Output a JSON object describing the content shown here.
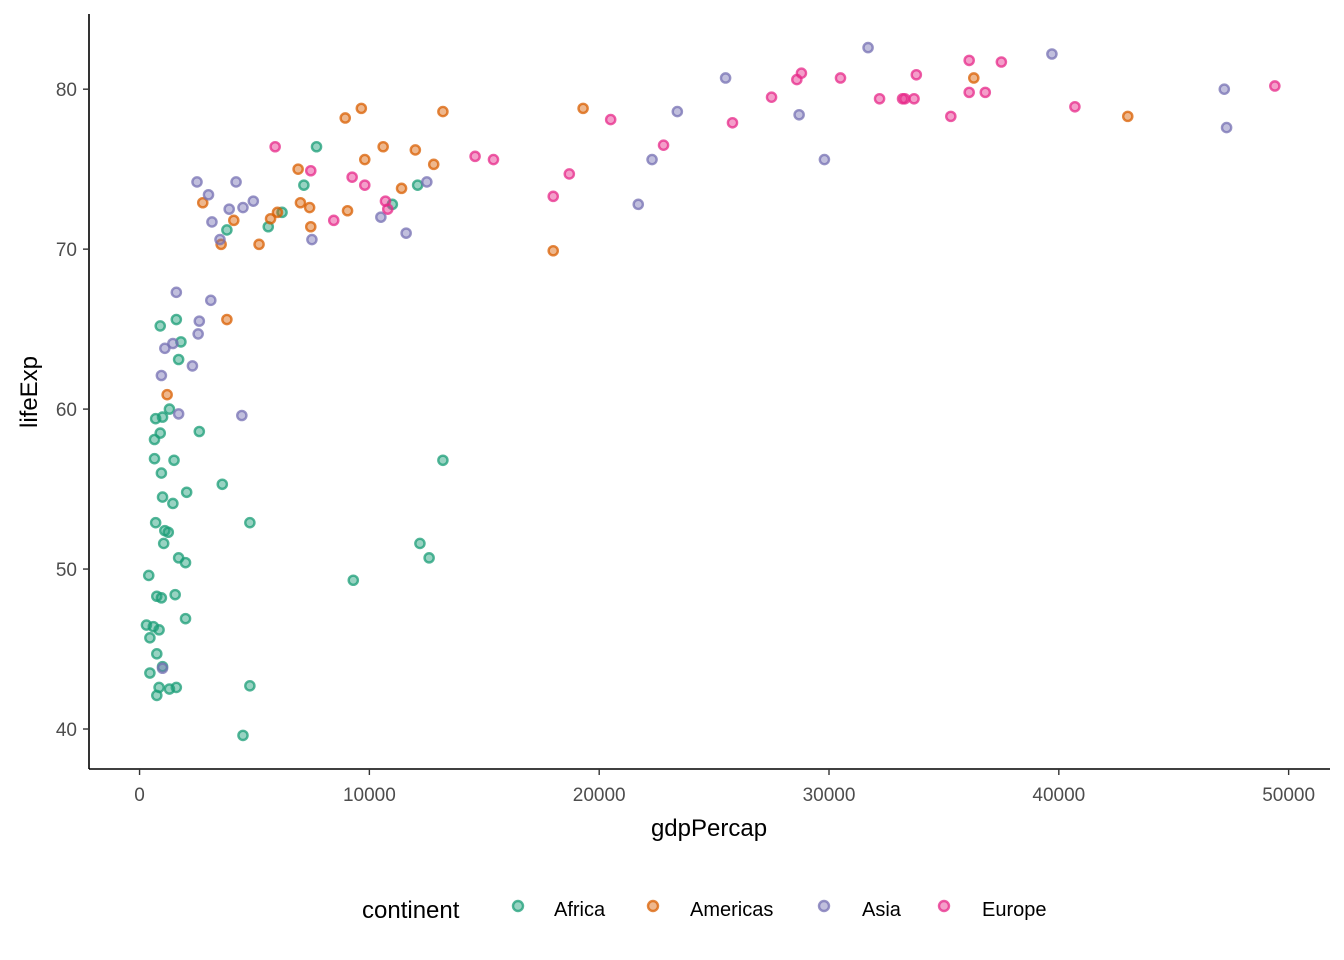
{
  "colors": {
    "Africa": "#1B9E77",
    "Americas": "#D95F02",
    "Asia": "#7570B3",
    "Europe": "#E7298A"
  },
  "legend": {
    "title": "continent",
    "position": "bottom",
    "items": [
      "Africa",
      "Americas",
      "Asia",
      "Europe"
    ]
  },
  "chart_data": {
    "type": "scatter",
    "title": "",
    "xlabel": "gdpPercap",
    "ylabel": "lifeExp",
    "xlim": [
      -2200,
      51800
    ],
    "ylim": [
      37.5,
      84.7
    ],
    "xticks": [
      0,
      10000,
      20000,
      30000,
      40000,
      50000
    ],
    "yticks": [
      40,
      50,
      60,
      70,
      80
    ],
    "grid": false,
    "series": [
      {
        "name": "Africa",
        "points": [
          [
            7700,
            76.4
          ],
          [
            7150,
            74.0
          ],
          [
            6200,
            72.3
          ],
          [
            5600,
            71.4
          ],
          [
            3800,
            71.2
          ],
          [
            12100,
            74.0
          ],
          [
            11000,
            72.8
          ],
          [
            900,
            65.2
          ],
          [
            1600,
            65.6
          ],
          [
            1800,
            64.2
          ],
          [
            1700,
            63.1
          ],
          [
            1000,
            59.5
          ],
          [
            700,
            59.4
          ],
          [
            1300,
            60.0
          ],
          [
            900,
            58.5
          ],
          [
            650,
            58.1
          ],
          [
            2600,
            58.6
          ],
          [
            650,
            56.9
          ],
          [
            1500,
            56.8
          ],
          [
            950,
            56.0
          ],
          [
            13200,
            56.8
          ],
          [
            3600,
            55.3
          ],
          [
            1000,
            54.5
          ],
          [
            1450,
            54.1
          ],
          [
            2050,
            54.8
          ],
          [
            700,
            52.9
          ],
          [
            1100,
            52.4
          ],
          [
            1250,
            52.3
          ],
          [
            4800,
            52.9
          ],
          [
            1050,
            51.6
          ],
          [
            12200,
            51.6
          ],
          [
            12600,
            50.7
          ],
          [
            1700,
            50.7
          ],
          [
            2000,
            50.4
          ],
          [
            400,
            49.6
          ],
          [
            9300,
            49.3
          ],
          [
            750,
            48.3
          ],
          [
            950,
            48.2
          ],
          [
            1550,
            48.4
          ],
          [
            2000,
            46.9
          ],
          [
            300,
            46.5
          ],
          [
            600,
            46.4
          ],
          [
            850,
            46.2
          ],
          [
            450,
            45.7
          ],
          [
            750,
            44.7
          ],
          [
            450,
            43.5
          ],
          [
            1000,
            43.9
          ],
          [
            850,
            42.6
          ],
          [
            1300,
            42.5
          ],
          [
            1600,
            42.6
          ],
          [
            750,
            42.1
          ],
          [
            4800,
            42.7
          ],
          [
            4500,
            39.6
          ]
        ]
      },
      {
        "name": "Americas",
        "points": [
          [
            9650,
            78.8
          ],
          [
            8950,
            78.2
          ],
          [
            13200,
            78.6
          ],
          [
            19300,
            78.8
          ],
          [
            36300,
            80.7
          ],
          [
            43000,
            78.3
          ],
          [
            6900,
            75.0
          ],
          [
            9800,
            75.6
          ],
          [
            10600,
            76.4
          ],
          [
            12000,
            76.2
          ],
          [
            12800,
            75.3
          ],
          [
            11400,
            73.8
          ],
          [
            7000,
            72.9
          ],
          [
            7400,
            72.6
          ],
          [
            9050,
            72.4
          ],
          [
            2750,
            72.9
          ],
          [
            5700,
            71.9
          ],
          [
            6000,
            72.3
          ],
          [
            7450,
            71.4
          ],
          [
            4100,
            71.8
          ],
          [
            3550,
            70.3
          ],
          [
            5200,
            70.3
          ],
          [
            18000,
            69.9
          ],
          [
            3800,
            65.6
          ],
          [
            1200,
            60.9
          ]
        ]
      },
      {
        "name": "Asia",
        "points": [
          [
            31700,
            82.6
          ],
          [
            39700,
            82.2
          ],
          [
            47200,
            80.0
          ],
          [
            47300,
            77.6
          ],
          [
            25500,
            80.7
          ],
          [
            28700,
            78.4
          ],
          [
            23400,
            78.6
          ],
          [
            22300,
            75.6
          ],
          [
            29800,
            75.6
          ],
          [
            21700,
            72.8
          ],
          [
            2500,
            74.2
          ],
          [
            4200,
            74.2
          ],
          [
            3000,
            73.4
          ],
          [
            4950,
            73.0
          ],
          [
            12500,
            74.2
          ],
          [
            3900,
            72.5
          ],
          [
            4500,
            72.6
          ],
          [
            3150,
            71.7
          ],
          [
            10500,
            72.0
          ],
          [
            11600,
            71.0
          ],
          [
            7500,
            70.6
          ],
          [
            3500,
            70.6
          ],
          [
            1600,
            67.3
          ],
          [
            3100,
            66.8
          ],
          [
            2600,
            65.5
          ],
          [
            2550,
            64.7
          ],
          [
            1450,
            64.1
          ],
          [
            1100,
            63.8
          ],
          [
            2300,
            62.7
          ],
          [
            950,
            62.1
          ],
          [
            1700,
            59.7
          ],
          [
            4450,
            59.6
          ],
          [
            1000,
            43.8
          ]
        ]
      },
      {
        "name": "Europe",
        "points": [
          [
            28800,
            81.0
          ],
          [
            28600,
            80.6
          ],
          [
            30500,
            80.7
          ],
          [
            33800,
            80.9
          ],
          [
            36100,
            81.8
          ],
          [
            37500,
            81.7
          ],
          [
            49400,
            80.2
          ],
          [
            27500,
            79.5
          ],
          [
            32200,
            79.4
          ],
          [
            33200,
            79.4
          ],
          [
            33300,
            79.4
          ],
          [
            33700,
            79.4
          ],
          [
            36100,
            79.8
          ],
          [
            36800,
            79.8
          ],
          [
            40700,
            78.9
          ],
          [
            35300,
            78.3
          ],
          [
            20500,
            78.1
          ],
          [
            25800,
            77.9
          ],
          [
            22800,
            76.5
          ],
          [
            14600,
            75.8
          ],
          [
            15400,
            75.6
          ],
          [
            18700,
            74.7
          ],
          [
            18000,
            73.3
          ],
          [
            5900,
            76.4
          ],
          [
            7450,
            74.9
          ],
          [
            9250,
            74.5
          ],
          [
            9800,
            74.0
          ],
          [
            10700,
            73.0
          ],
          [
            10800,
            72.5
          ],
          [
            8450,
            71.8
          ]
        ]
      }
    ]
  }
}
